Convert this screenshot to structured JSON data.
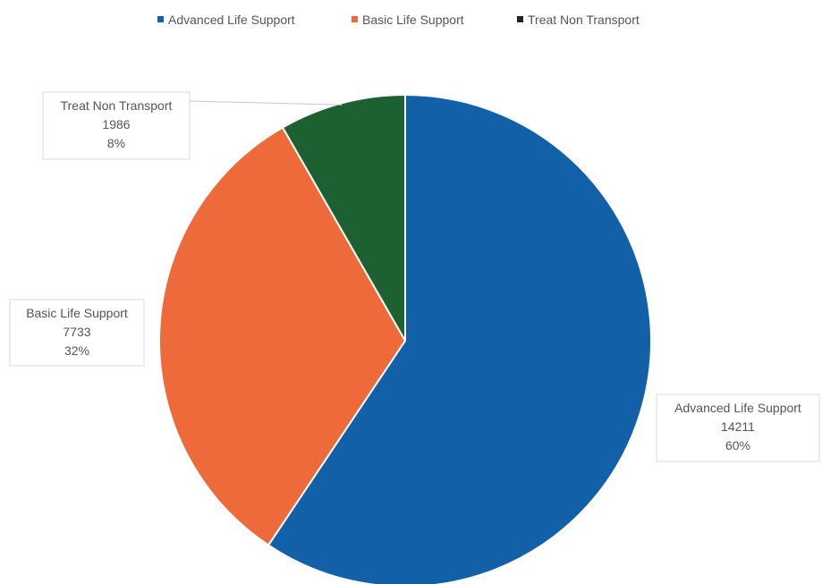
{
  "chart_data": {
    "type": "pie",
    "series": [
      {
        "name": "Advanced Life Support",
        "value": 14211,
        "percent_label": "60%",
        "value_label": "14211",
        "color": "#1260a8",
        "legend_color": "#1260a8"
      },
      {
        "name": "Basic Life Support",
        "value": 7733,
        "percent_label": "32%",
        "value_label": "7733",
        "color": "#ee6a3b",
        "legend_color": "#ee6a3b"
      },
      {
        "name": "Treat Non Transport",
        "value": 1986,
        "percent_label": "8%",
        "value_label": "1986",
        "color": "#1d6132",
        "legend_color": "#222222"
      }
    ],
    "legend_position": "top",
    "start_angle": "12 o'clock",
    "direction": "clockwise",
    "slice_border_color": "#ffffff"
  }
}
